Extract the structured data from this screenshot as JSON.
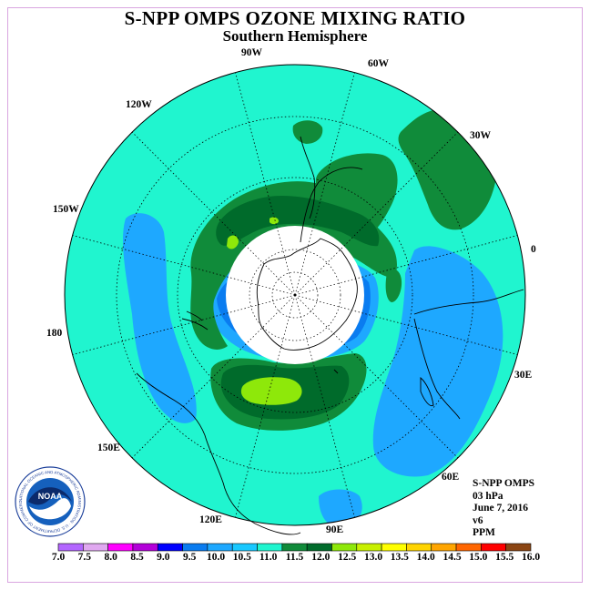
{
  "header": {
    "title": "S-NPP OMPS OZONE MIXING RATIO",
    "subtitle": "Southern Hemisphere"
  },
  "longitude_labels": [
    "90W",
    "60W",
    "30W",
    "0",
    "30E",
    "60E",
    "90E",
    "120E",
    "150E",
    "180",
    "150W",
    "120W"
  ],
  "info": {
    "product": "S-NPP OMPS",
    "level": "03 hPa",
    "date": "June 7, 2016",
    "version": "v6",
    "units": "PPM"
  },
  "logo": {
    "text": "NOAA",
    "ring_text": "NATIONAL OCEANIC AND ATMOSPHERIC ADMINISTRATION · U.S. DEPARTMENT OF COMMERCE"
  },
  "colorbar": {
    "labels": [
      "7.0",
      "7.5",
      "8.0",
      "8.5",
      "9.0",
      "9.5",
      "10.0",
      "10.5",
      "11.0",
      "11.5",
      "12.0",
      "12.5",
      "13.0",
      "13.5",
      "14.0",
      "14.5",
      "15.0",
      "15.5",
      "16.0"
    ],
    "colors": [
      "#b366ff",
      "#e0a8f0",
      "#ff00ff",
      "#b300d9",
      "#0000ff",
      "#0a7cf0",
      "#1ea8ff",
      "#19c8ff",
      "#20f5cf",
      "#108b3a",
      "#006b2b",
      "#8ee80a",
      "#c8f000",
      "#ffff00",
      "#ffd400",
      "#ffa500",
      "#ff6600",
      "#ff0000",
      "#8b4513"
    ]
  },
  "map_data": {
    "projection": "polar stereographic, south pole centered",
    "variable": "ozone mixing ratio",
    "units": "PPM",
    "level_hPa": 3,
    "background_color": "#20f5cf",
    "regions": [
      {
        "range": "11.5-12.0",
        "color": "#108b3a",
        "location": "ring around polar night near 60-120W and 90E-150E, plus patch near 30W-60W"
      },
      {
        "range": "12.0-12.5",
        "color": "#006b2b",
        "location": "cores near 60W-90W and 90E-120E"
      },
      {
        "range": "12.5-13.0",
        "color": "#8ee80a",
        "location": "small cores near 120E and 90W-120W"
      },
      {
        "range": "10.0-10.5",
        "color": "#1ea8ff",
        "location": "lows near 0-60E and 150W-180"
      },
      {
        "range": "no data",
        "color": "#ffffff",
        "location": "polar night region around the pole"
      }
    ]
  }
}
